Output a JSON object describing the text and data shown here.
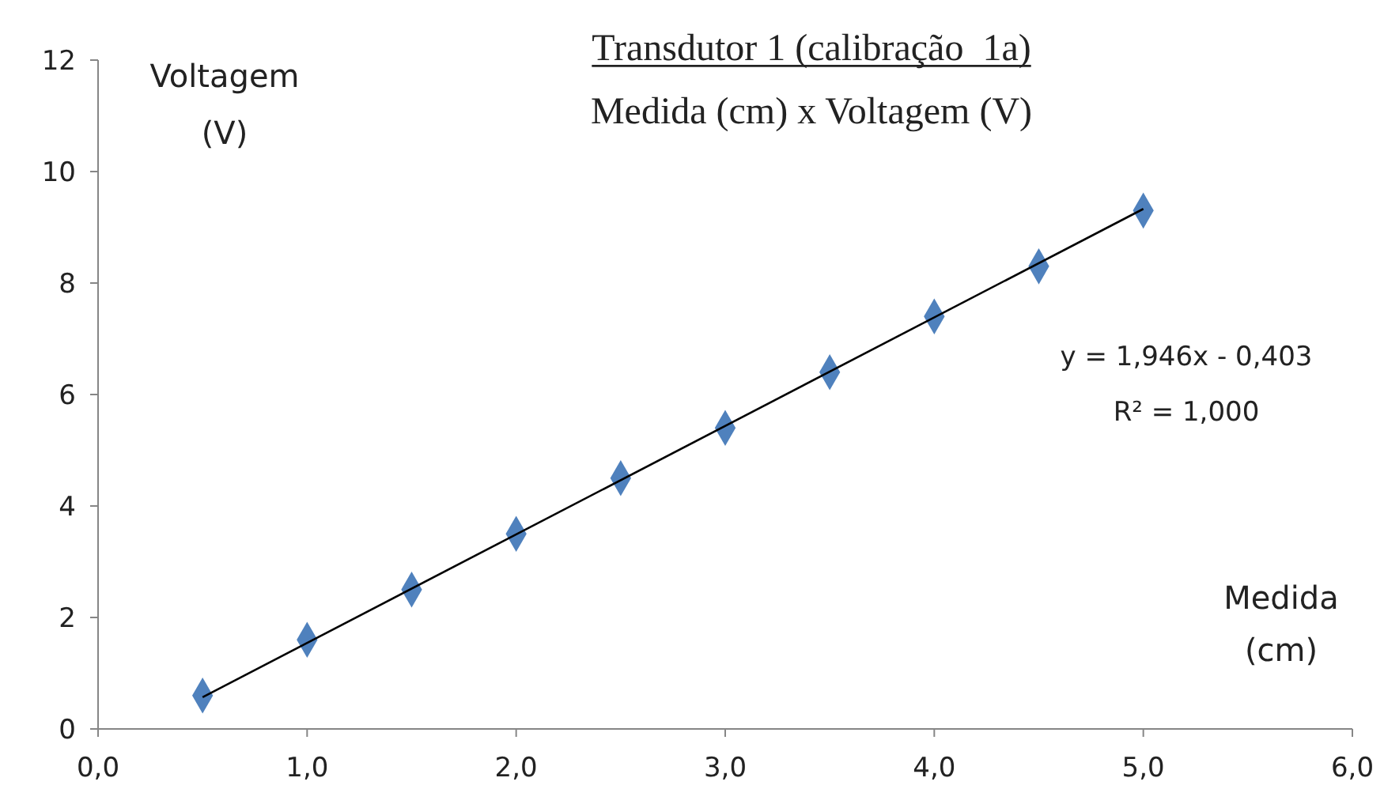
{
  "chart_data": {
    "type": "scatter",
    "title": "Transdutor 1 (calibração  1a)",
    "subtitle": "Medida (cm) x Voltagem (V)",
    "xlabel": "Medida (cm)",
    "ylabel": "Voltagem (V)",
    "xlim": [
      0,
      6
    ],
    "xticks": [
      {
        "value": 0,
        "label": "0,0"
      },
      {
        "value": 1,
        "label": "1,0"
      },
      {
        "value": 2,
        "label": "2,0"
      },
      {
        "value": 3,
        "label": "3,0"
      },
      {
        "value": 4,
        "label": "4,0"
      },
      {
        "value": 5,
        "label": "5,0"
      },
      {
        "value": 6,
        "label": "6,0"
      }
    ],
    "ylim": [
      0,
      12
    ],
    "yticks": [
      0,
      2,
      4,
      6,
      8,
      10,
      12
    ],
    "grid": false,
    "marker": "diamond",
    "x": [
      0.5,
      1.0,
      1.5,
      2.0,
      2.5,
      3.0,
      3.5,
      4.0,
      4.5,
      5.0
    ],
    "series": [
      {
        "color": "#4f81bd",
        "values": [
          0.6,
          1.6,
          2.5,
          3.5,
          4.5,
          5.4,
          6.4,
          7.4,
          8.3,
          9.3
        ]
      },
      {
        "type": "line",
        "color": "#000000",
        "x": [
          0.5,
          5.0
        ],
        "values": [
          0.57,
          9.33
        ],
        "marker": "none",
        "line_style": "solid"
      }
    ],
    "annotations": [
      "y = 1,946x - 0,403",
      "R² = 1,000"
    ]
  }
}
